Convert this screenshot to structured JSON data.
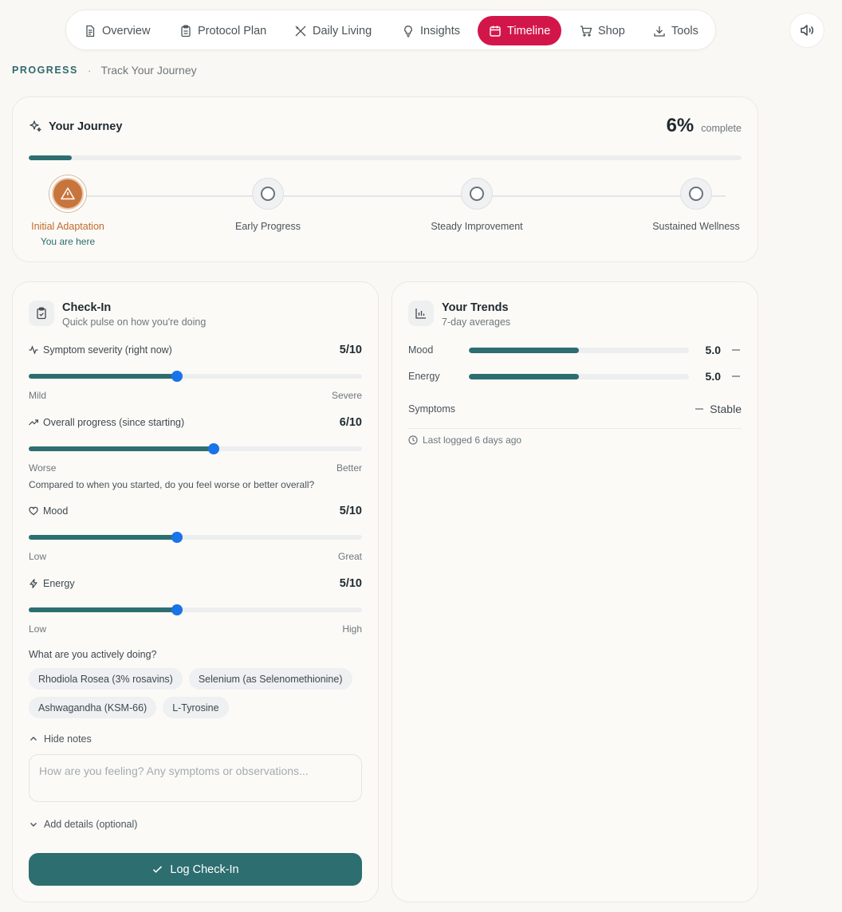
{
  "nav": {
    "items": [
      {
        "label": "Overview",
        "icon": "file-icon"
      },
      {
        "label": "Protocol Plan",
        "icon": "clipboard-icon"
      },
      {
        "label": "Daily Living",
        "icon": "utensils-icon"
      },
      {
        "label": "Insights",
        "icon": "lightbulb-icon"
      },
      {
        "label": "Timeline",
        "icon": "calendar-icon",
        "active": true
      },
      {
        "label": "Shop",
        "icon": "cart-icon"
      },
      {
        "label": "Tools",
        "icon": "download-icon"
      }
    ],
    "sound_icon": "speaker-icon"
  },
  "breadcrumb": {
    "lead": "PROGRESS",
    "separator": "·",
    "sub": "Track Your Journey"
  },
  "journey": {
    "title": "Your Journey",
    "percent": 6,
    "percent_label": "6%",
    "complete_label": "complete",
    "stages": [
      {
        "name": "Initial Adaptation",
        "current": true,
        "note": "You are here"
      },
      {
        "name": "Early Progress"
      },
      {
        "name": "Steady Improvement"
      },
      {
        "name": "Sustained Wellness"
      }
    ]
  },
  "checkin": {
    "title": "Check-In",
    "subtitle": "Quick pulse on how you're doing",
    "metrics": [
      {
        "label": "Symptom severity (right now)",
        "value": 5,
        "max": 10,
        "display": "5/10",
        "low": "Mild",
        "high": "Severe",
        "icon": "activity-icon"
      },
      {
        "label": "Overall progress (since starting)",
        "value": 6,
        "max": 10,
        "display": "6/10",
        "low": "Worse",
        "high": "Better",
        "note": "Compared to when you started, do you feel worse or better overall?",
        "icon": "trending-up-icon"
      },
      {
        "label": "Mood",
        "value": 5,
        "max": 10,
        "display": "5/10",
        "low": "Low",
        "high": "Great",
        "icon": "heart-icon"
      },
      {
        "label": "Energy",
        "value": 5,
        "max": 10,
        "display": "5/10",
        "low": "Low",
        "high": "High",
        "icon": "bolt-icon"
      }
    ],
    "doing_label": "What are you actively doing?",
    "chips": [
      "Rhodiola Rosea (3% rosavins)",
      "Selenium (as Selenomethionine)",
      "Ashwagandha (KSM-66)",
      "L-Tyrosine"
    ],
    "hide_notes": "Hide notes",
    "notes_placeholder": "How are you feeling? Any symptoms or observations...",
    "notes_value": "",
    "add_details": "Add details (optional)",
    "log_button": "Log Check-In",
    "accent": "#2d6e70",
    "thumb_color": "#1a73e8"
  },
  "trends": {
    "title": "Your Trends",
    "subtitle": "7-day averages",
    "rows": [
      {
        "label": "Mood",
        "value": 5.0,
        "display": "5.0",
        "max": 10
      },
      {
        "label": "Energy",
        "value": 5.0,
        "display": "5.0",
        "max": 10
      }
    ],
    "symptoms_label": "Symptoms",
    "symptoms_status": "Stable",
    "last_logged": "Last logged 6 days ago"
  },
  "colors": {
    "brand_active": "#d3164a",
    "teal": "#2d6e70",
    "stage_current": "#c8743d"
  }
}
